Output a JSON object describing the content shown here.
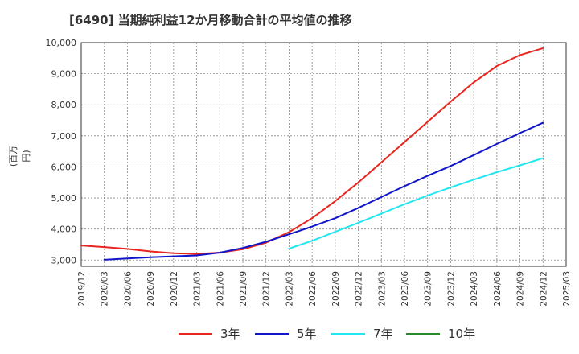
{
  "chart_data": {
    "type": "line",
    "title": "[6490]  当期純利益12か月移動合計の平均値の推移",
    "ylabel": "(百万円)",
    "xlabel": "",
    "ylim": [
      2800,
      10000
    ],
    "yticks": [
      3000,
      4000,
      5000,
      6000,
      7000,
      8000,
      9000,
      10000
    ],
    "ytick_labels": [
      "3,000",
      "4,000",
      "5,000",
      "6,000",
      "7,000",
      "8,000",
      "9,000",
      "10,000"
    ],
    "x_ticks": [
      "2019/12",
      "2020/03",
      "2020/06",
      "2020/09",
      "2020/12",
      "2021/03",
      "2021/06",
      "2021/09",
      "2021/12",
      "2022/03",
      "2022/06",
      "2022/09",
      "2022/12",
      "2023/03",
      "2023/06",
      "2023/09",
      "2023/12",
      "2024/03",
      "2024/06",
      "2024/09",
      "2024/12",
      "2025/03"
    ],
    "grid": true,
    "legend_position": "bottom",
    "series": [
      {
        "name": "3年",
        "color": "#e8251f",
        "x": [
          "2019/12",
          "2020/03",
          "2020/06",
          "2020/09",
          "2020/12",
          "2021/03",
          "2021/06",
          "2021/09",
          "2021/12",
          "2022/03",
          "2022/06",
          "2022/09",
          "2022/12",
          "2023/03",
          "2023/06",
          "2023/09",
          "2023/12",
          "2024/03",
          "2024/06",
          "2024/09",
          "2024/12"
        ],
        "values": [
          3470,
          3420,
          3360,
          3280,
          3220,
          3200,
          3240,
          3350,
          3560,
          3900,
          4350,
          4900,
          5500,
          6150,
          6800,
          7450,
          8100,
          8720,
          9250,
          9600,
          9820
        ]
      },
      {
        "name": "5年",
        "color": "#1015c8",
        "x": [
          "2020/03",
          "2020/06",
          "2020/09",
          "2020/12",
          "2021/03",
          "2021/06",
          "2021/09",
          "2021/12",
          "2022/03",
          "2022/06",
          "2022/09",
          "2022/12",
          "2023/03",
          "2023/06",
          "2023/09",
          "2023/12",
          "2024/03",
          "2024/06",
          "2024/09",
          "2024/12"
        ],
        "values": [
          3010,
          3050,
          3090,
          3120,
          3150,
          3240,
          3390,
          3590,
          3830,
          4080,
          4350,
          4680,
          5030,
          5380,
          5710,
          6030,
          6380,
          6740,
          7090,
          7420
        ]
      },
      {
        "name": "7年",
        "color": "#22e6f0",
        "x": [
          "2022/03",
          "2022/06",
          "2022/09",
          "2022/12",
          "2023/03",
          "2023/06",
          "2023/09",
          "2023/12",
          "2024/03",
          "2024/06",
          "2024/09",
          "2024/12"
        ],
        "values": [
          3370,
          3620,
          3910,
          4200,
          4500,
          4800,
          5080,
          5340,
          5590,
          5830,
          6050,
          6280
        ]
      },
      {
        "name": "10年",
        "color": "#2a8a2a",
        "x": [],
        "values": []
      }
    ]
  }
}
